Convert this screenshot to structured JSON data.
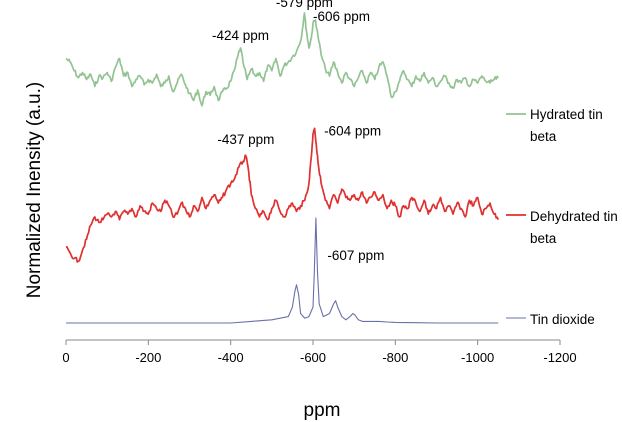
{
  "chart_data": {
    "type": "line",
    "title": "",
    "xlabel": "ppm",
    "ylabel": "Normalized Inensity (a.u.)",
    "xlim": [
      0,
      -1200
    ],
    "xticks": [
      0,
      -200,
      -400,
      -600,
      -800,
      -1000,
      -1200
    ],
    "xtick_labels": [
      "0",
      "-200",
      "-400",
      "-600",
      "-800",
      "-1000",
      "-1200"
    ],
    "ylim": [
      0,
      1.05
    ],
    "grid": false,
    "legend_position": "right",
    "series": [
      {
        "name": "Hydrated tin beta",
        "color": "#93c393",
        "x": [
          0,
          -10,
          -20,
          -30,
          -40,
          -50,
          -60,
          -70,
          -80,
          -90,
          -100,
          -110,
          -120,
          -130,
          -140,
          -150,
          -160,
          -170,
          -180,
          -190,
          -200,
          -210,
          -220,
          -230,
          -240,
          -250,
          -260,
          -270,
          -280,
          -290,
          -300,
          -310,
          -320,
          -330,
          -340,
          -350,
          -360,
          -370,
          -380,
          -390,
          -400,
          -410,
          -418,
          -424,
          -430,
          -440,
          -450,
          -460,
          -470,
          -480,
          -490,
          -500,
          -510,
          -520,
          -530,
          -540,
          -550,
          -560,
          -570,
          -575,
          -579,
          -584,
          -590,
          -596,
          -600,
          -606,
          -612,
          -620,
          -630,
          -640,
          -650,
          -660,
          -670,
          -680,
          -690,
          -700,
          -710,
          -720,
          -730,
          -740,
          -750,
          -760,
          -770,
          -780,
          -790,
          -800,
          -810,
          -820,
          -830,
          -840,
          -850,
          -860,
          -870,
          -880,
          -890,
          -900,
          -910,
          -920,
          -930,
          -940,
          -950,
          -960,
          -970,
          -980,
          -990,
          -1000,
          -1010,
          -1020,
          -1030,
          -1040,
          -1050
        ],
        "y": [
          0.74,
          0.72,
          0.67,
          0.63,
          0.66,
          0.62,
          0.65,
          0.58,
          0.64,
          0.63,
          0.66,
          0.61,
          0.69,
          0.74,
          0.64,
          0.66,
          0.58,
          0.62,
          0.64,
          0.59,
          0.62,
          0.6,
          0.65,
          0.58,
          0.6,
          0.64,
          0.55,
          0.6,
          0.65,
          0.59,
          0.54,
          0.5,
          0.56,
          0.47,
          0.55,
          0.53,
          0.58,
          0.5,
          0.55,
          0.57,
          0.61,
          0.68,
          0.76,
          0.8,
          0.72,
          0.62,
          0.68,
          0.64,
          0.66,
          0.61,
          0.7,
          0.67,
          0.74,
          0.64,
          0.7,
          0.72,
          0.75,
          0.78,
          0.84,
          0.92,
          1.0,
          0.9,
          0.8,
          0.86,
          0.94,
          0.96,
          0.87,
          0.76,
          0.68,
          0.64,
          0.72,
          0.66,
          0.6,
          0.66,
          0.62,
          0.58,
          0.63,
          0.67,
          0.6,
          0.66,
          0.62,
          0.69,
          0.72,
          0.64,
          0.52,
          0.55,
          0.61,
          0.67,
          0.62,
          0.58,
          0.64,
          0.61,
          0.66,
          0.6,
          0.63,
          0.58,
          0.61,
          0.64,
          0.6,
          0.57,
          0.62,
          0.6,
          0.63,
          0.58,
          0.62,
          0.6,
          0.64,
          0.61,
          0.6,
          0.62,
          0.63
        ]
      },
      {
        "name": "Dehydrated tin beta",
        "color": "#e03030",
        "x": [
          0,
          -10,
          -20,
          -30,
          -40,
          -50,
          -60,
          -70,
          -80,
          -90,
          -100,
          -110,
          -120,
          -130,
          -140,
          -150,
          -160,
          -170,
          -180,
          -190,
          -200,
          -210,
          -220,
          -230,
          -240,
          -250,
          -260,
          -270,
          -280,
          -290,
          -300,
          -310,
          -320,
          -330,
          -340,
          -350,
          -360,
          -370,
          -380,
          -390,
          -400,
          -410,
          -420,
          -430,
          -437,
          -444,
          -450,
          -460,
          -470,
          -480,
          -490,
          -500,
          -510,
          -520,
          -530,
          -540,
          -550,
          -560,
          -570,
          -580,
          -590,
          -596,
          -600,
          -604,
          -608,
          -612,
          -620,
          -630,
          -640,
          -650,
          -660,
          -670,
          -680,
          -690,
          -700,
          -710,
          -720,
          -730,
          -740,
          -750,
          -760,
          -770,
          -780,
          -790,
          -800,
          -810,
          -820,
          -830,
          -840,
          -850,
          -860,
          -870,
          -880,
          -890,
          -900,
          -910,
          -920,
          -930,
          -940,
          -950,
          -960,
          -970,
          -980,
          -990,
          -1000,
          -1010,
          -1020,
          -1030,
          -1040,
          -1050
        ],
        "y": [
          0.19,
          0.17,
          0.15,
          0.14,
          0.18,
          0.22,
          0.27,
          0.3,
          0.28,
          0.29,
          0.31,
          0.3,
          0.32,
          0.29,
          0.32,
          0.31,
          0.33,
          0.3,
          0.34,
          0.32,
          0.31,
          0.35,
          0.33,
          0.32,
          0.36,
          0.34,
          0.3,
          0.31,
          0.35,
          0.33,
          0.3,
          0.34,
          0.32,
          0.37,
          0.33,
          0.36,
          0.38,
          0.35,
          0.37,
          0.4,
          0.42,
          0.44,
          0.48,
          0.5,
          0.52,
          0.46,
          0.38,
          0.33,
          0.3,
          0.32,
          0.29,
          0.33,
          0.36,
          0.32,
          0.3,
          0.33,
          0.35,
          0.32,
          0.34,
          0.36,
          0.42,
          0.52,
          0.6,
          0.62,
          0.56,
          0.5,
          0.42,
          0.36,
          0.33,
          0.38,
          0.35,
          0.4,
          0.37,
          0.36,
          0.38,
          0.36,
          0.39,
          0.35,
          0.37,
          0.39,
          0.36,
          0.38,
          0.33,
          0.36,
          0.34,
          0.3,
          0.34,
          0.33,
          0.37,
          0.35,
          0.32,
          0.36,
          0.31,
          0.34,
          0.33,
          0.37,
          0.32,
          0.34,
          0.31,
          0.35,
          0.33,
          0.3,
          0.36,
          0.34,
          0.37,
          0.31,
          0.33,
          0.35,
          0.31,
          0.29
        ]
      },
      {
        "name": "Tin dioxide",
        "color": "#6a70a8",
        "x": [
          0,
          -100,
          -200,
          -300,
          -400,
          -450,
          -500,
          -520,
          -540,
          -550,
          -556,
          -560,
          -565,
          -570,
          -580,
          -590,
          -600,
          -603,
          -607,
          -611,
          -615,
          -625,
          -640,
          -650,
          -655,
          -660,
          -670,
          -680,
          -690,
          -697,
          -702,
          -710,
          -720,
          -740,
          -760,
          -780,
          -800,
          -850,
          -900,
          -950,
          -1000,
          -1050
        ],
        "y": [
          0.0,
          0.0,
          0.0,
          0.0,
          0.0,
          0.005,
          0.01,
          0.015,
          0.02,
          0.05,
          0.1,
          0.12,
          0.09,
          0.03,
          0.015,
          0.02,
          0.05,
          0.15,
          0.33,
          0.16,
          0.06,
          0.02,
          0.03,
          0.06,
          0.07,
          0.05,
          0.02,
          0.01,
          0.02,
          0.03,
          0.025,
          0.01,
          0.005,
          0.005,
          0.005,
          0.003,
          0.002,
          0.001,
          0.0,
          0.0,
          0.0,
          0.0
        ]
      }
    ],
    "annotations": [
      {
        "text": "-424 ppm",
        "series": "Hydrated tin beta",
        "x": -424
      },
      {
        "text": "-579 ppm",
        "series": "Hydrated tin beta",
        "x": -579
      },
      {
        "text": "-606 ppm",
        "series": "Hydrated tin beta",
        "x": -606
      },
      {
        "text": "-437 ppm",
        "series": "Dehydrated tin beta",
        "x": -437
      },
      {
        "text": "-604 ppm",
        "series": "Dehydrated tin beta",
        "x": -604
      },
      {
        "text": "-607 ppm",
        "series": "Tin dioxide",
        "x": -607
      }
    ]
  }
}
